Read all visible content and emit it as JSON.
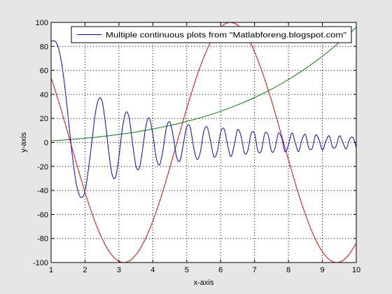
{
  "chart_data": {
    "type": "line",
    "title": "",
    "xlabel": "x-axis",
    "ylabel": "y-axis",
    "xlim": [
      1,
      10
    ],
    "ylim": [
      -100,
      100
    ],
    "xticks": [
      "1",
      "2",
      "3",
      "4",
      "5",
      "6",
      "7",
      "8",
      "9",
      "10"
    ],
    "yticks": [
      "-100",
      "-80",
      "-60",
      "-40",
      "-20",
      "0",
      "20",
      "40",
      "60",
      "80",
      "100"
    ],
    "grid": true,
    "legend_position": "top-right",
    "legend_entries": [
      "Multiple continuous plots from \"Matlabforeng.blogspot.com\""
    ],
    "series": [
      {
        "name": "Multiple continuous plots from \"Matlabforeng.blogspot.com\"",
        "color": "#0000ff",
        "x": [
          1.0,
          1.1,
          1.2,
          1.3,
          1.4,
          1.5,
          1.6,
          1.7,
          1.8,
          1.9,
          2.0,
          2.1,
          2.2,
          2.3,
          2.4,
          2.5,
          2.6,
          2.7,
          2.8,
          2.9,
          3.0,
          3.1,
          3.2,
          3.3,
          3.4,
          3.5,
          3.6,
          3.7,
          3.8,
          3.9,
          4.0,
          4.1,
          4.2,
          4.3,
          4.4,
          4.5,
          4.6,
          4.7,
          4.8,
          4.9,
          5.0,
          5.1,
          5.2,
          5.3,
          5.4,
          5.5,
          5.6,
          5.7,
          5.8,
          5.9,
          6.0,
          6.1,
          6.2,
          6.3,
          6.4,
          6.5,
          6.6,
          6.7,
          6.8,
          6.9,
          7.0,
          7.1,
          7.2,
          7.3,
          7.4,
          7.5,
          7.6,
          7.7,
          7.8,
          7.9,
          8.0,
          8.1,
          8.2,
          8.3,
          8.4,
          8.5,
          8.6,
          8.7,
          8.8,
          8.9,
          9.0,
          9.1,
          9.2,
          9.3,
          9.4,
          9.5,
          9.6,
          9.7,
          9.8,
          9.9,
          10.0
        ],
        "values": [
          84.1,
          84.7,
          80.1,
          67.6,
          47.4,
          21.8,
          -4.7,
          -27.2,
          -41.4,
          -45.9,
          -40.6,
          -22.3,
          0.2,
          23.5,
          35.9,
          34.7,
          16.6,
          -7.9,
          -26.9,
          -28.9,
          -12.0,
          11.3,
          25.0,
          20.5,
          -0.3,
          -19.5,
          -21.6,
          -5.3,
          14.4,
          20.2,
          6.6,
          -12.9,
          -18.6,
          -6.1,
          12.2,
          17.1,
          5.0,
          -12.0,
          -15.3,
          -1.3,
          13.1,
          12.7,
          -3.7,
          -14.0,
          -8.2,
          8.9,
          12.9,
          1.3,
          -11.9,
          -7.6,
          8.4,
          11.3,
          -1.5,
          -11.8,
          -2.3,
          10.6,
          5.3,
          -8.8,
          -6.7,
          7.6,
          7.2,
          -7.2,
          -6.7,
          7.3,
          6.1,
          -7.4,
          -5.1,
          7.5,
          3.8,
          -7.8,
          -1.9,
          8.0,
          -0.3,
          -7.6,
          2.6,
          6.6,
          -4.7,
          -4.8,
          6.1,
          2.2,
          -6.4,
          0.9,
          5.5,
          -3.8,
          -3.4,
          5.5,
          0.3,
          -5.5,
          2.4,
          4.2,
          -4.2
        ]
      },
      {
        "color": "#ff0000",
        "x": [
          1.0,
          1.25,
          1.5,
          1.75,
          2.0,
          2.25,
          2.5,
          2.75,
          3.0,
          3.25,
          3.5,
          3.75,
          4.0,
          4.25,
          4.5,
          4.75,
          5.0,
          5.25,
          5.5,
          5.75,
          6.0,
          6.25,
          6.5,
          6.75,
          7.0,
          7.25,
          7.5,
          7.75,
          8.0,
          8.25,
          8.5,
          8.75,
          9.0,
          9.25,
          9.5,
          9.75,
          10.0
        ],
        "values": [
          54.0,
          31.5,
          7.1,
          -17.8,
          -41.6,
          -62.8,
          -80.1,
          -92.4,
          -99.0,
          -99.4,
          -93.6,
          -82.0,
          -65.4,
          -44.7,
          -21.1,
          3.8,
          28.4,
          51.2,
          70.9,
          86.1,
          96.0,
          99.9,
          97.7,
          89.4,
          75.4,
          56.6,
          34.7,
          10.3,
          -14.6,
          -38.8,
          -60.2,
          -78.0,
          -91.1,
          -98.5,
          -99.7,
          -94.6,
          -83.9
        ]
      },
      {
        "color": "#008000",
        "x": [
          1.0,
          1.5,
          2.0,
          2.5,
          3.0,
          3.5,
          4.0,
          4.5,
          5.0,
          5.5,
          6.0,
          6.5,
          7.0,
          7.5,
          8.0,
          8.5,
          9.0,
          9.5,
          10.0
        ],
        "values": [
          1.3,
          2.3,
          3.5,
          4.9,
          6.7,
          8.7,
          11.2,
          14.1,
          17.5,
          21.4,
          26.0,
          31.3,
          37.4,
          44.4,
          52.4,
          61.5,
          71.8,
          83.3,
          96.0
        ]
      }
    ]
  }
}
